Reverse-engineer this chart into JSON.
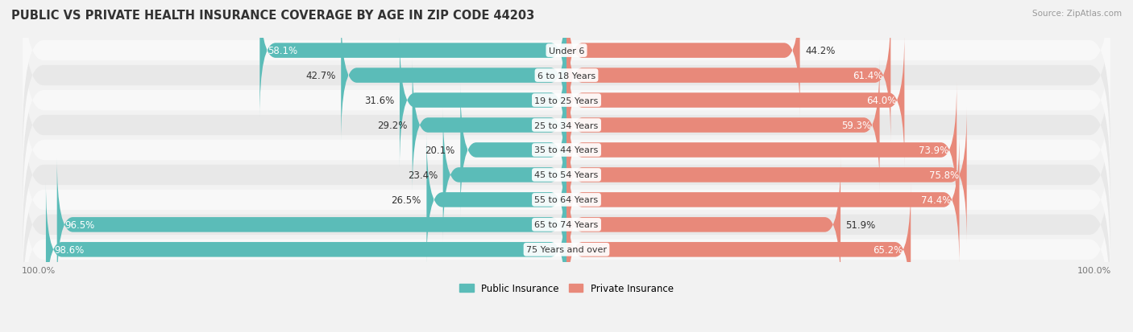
{
  "title": "PUBLIC VS PRIVATE HEALTH INSURANCE COVERAGE BY AGE IN ZIP CODE 44203",
  "source": "Source: ZipAtlas.com",
  "categories": [
    "Under 6",
    "6 to 18 Years",
    "19 to 25 Years",
    "25 to 34 Years",
    "35 to 44 Years",
    "45 to 54 Years",
    "55 to 64 Years",
    "65 to 74 Years",
    "75 Years and over"
  ],
  "public_values": [
    58.1,
    42.7,
    31.6,
    29.2,
    20.1,
    23.4,
    26.5,
    96.5,
    98.6
  ],
  "private_values": [
    44.2,
    61.4,
    64.0,
    59.3,
    73.9,
    75.8,
    74.4,
    51.9,
    65.2
  ],
  "public_color": "#5bbcb8",
  "private_color": "#e8897a",
  "bg_color": "#f2f2f2",
  "row_bg_light": "#f8f8f8",
  "row_bg_dark": "#e8e8e8",
  "max_bar": 100.0,
  "title_fontsize": 10.5,
  "label_fontsize": 8.5,
  "tick_fontsize": 8,
  "pub_inside_threshold": 50,
  "priv_inside_threshold": 55
}
